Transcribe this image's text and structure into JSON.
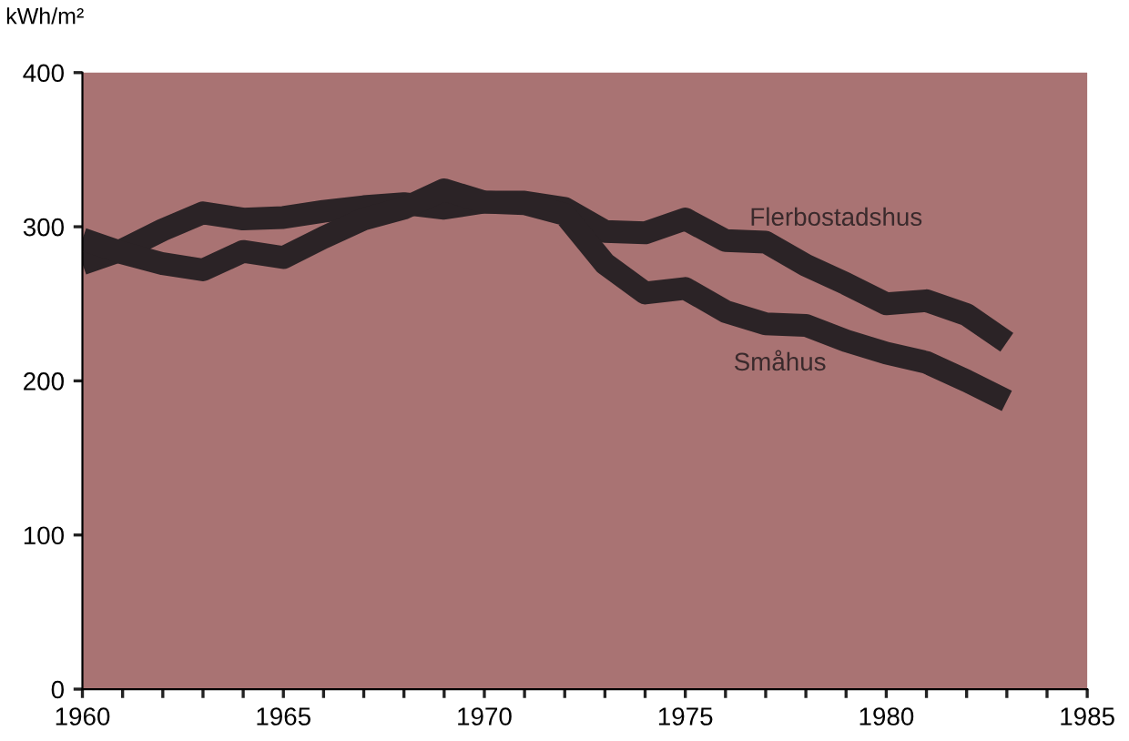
{
  "chart_data": {
    "type": "line",
    "ylabel": "kWh/m²",
    "x": [
      1960,
      1961,
      1962,
      1963,
      1964,
      1965,
      1966,
      1967,
      1968,
      1969,
      1970,
      1971,
      1972,
      1973,
      1974,
      1975,
      1976,
      1977,
      1978,
      1979,
      1980,
      1981,
      1982,
      1983
    ],
    "series": [
      {
        "name": "Flerbostadshus",
        "color": "#2b2326",
        "values": [
          276,
          285,
          298,
          309,
          305,
          306,
          310,
          313,
          315,
          312,
          316,
          316,
          312,
          297,
          296,
          305,
          291,
          290,
          275,
          263,
          250,
          252,
          243,
          225
        ]
      },
      {
        "name": "Småhus",
        "color": "#2b2326",
        "values": [
          292,
          283,
          276,
          272,
          284,
          280,
          293,
          305,
          312,
          324,
          316,
          315,
          308,
          276,
          257,
          260,
          245,
          237,
          236,
          226,
          218,
          212,
          200,
          187
        ]
      }
    ],
    "xlim": [
      1960,
      1985
    ],
    "xticks": [
      1960,
      {
        "value": 1961,
        "label": null
      },
      {
        "value": 1962,
        "label": null
      },
      {
        "value": 1963,
        "label": null
      },
      {
        "value": 1964,
        "label": null
      },
      1965,
      {
        "value": 1966,
        "label": null
      },
      {
        "value": 1967,
        "label": null
      },
      {
        "value": 1968,
        "label": null
      },
      {
        "value": 1969,
        "label": null
      },
      1970,
      {
        "value": 1971,
        "label": null
      },
      {
        "value": 1972,
        "label": null
      },
      {
        "value": 1973,
        "label": null
      },
      {
        "value": 1974,
        "label": null
      },
      1975,
      {
        "value": 1976,
        "label": null
      },
      {
        "value": 1977,
        "label": null
      },
      {
        "value": 1978,
        "label": null
      },
      {
        "value": 1979,
        "label": null
      },
      1980,
      {
        "value": 1981,
        "label": null
      },
      {
        "value": 1982,
        "label": null
      },
      {
        "value": 1983,
        "label": null
      },
      {
        "value": 1984,
        "label": null
      },
      1985
    ],
    "ylim": [
      0,
      400
    ],
    "yticks": [
      0,
      100,
      200,
      300,
      400
    ],
    "grid": false,
    "legend": false,
    "marker": "none",
    "line_style": "solid"
  }
}
